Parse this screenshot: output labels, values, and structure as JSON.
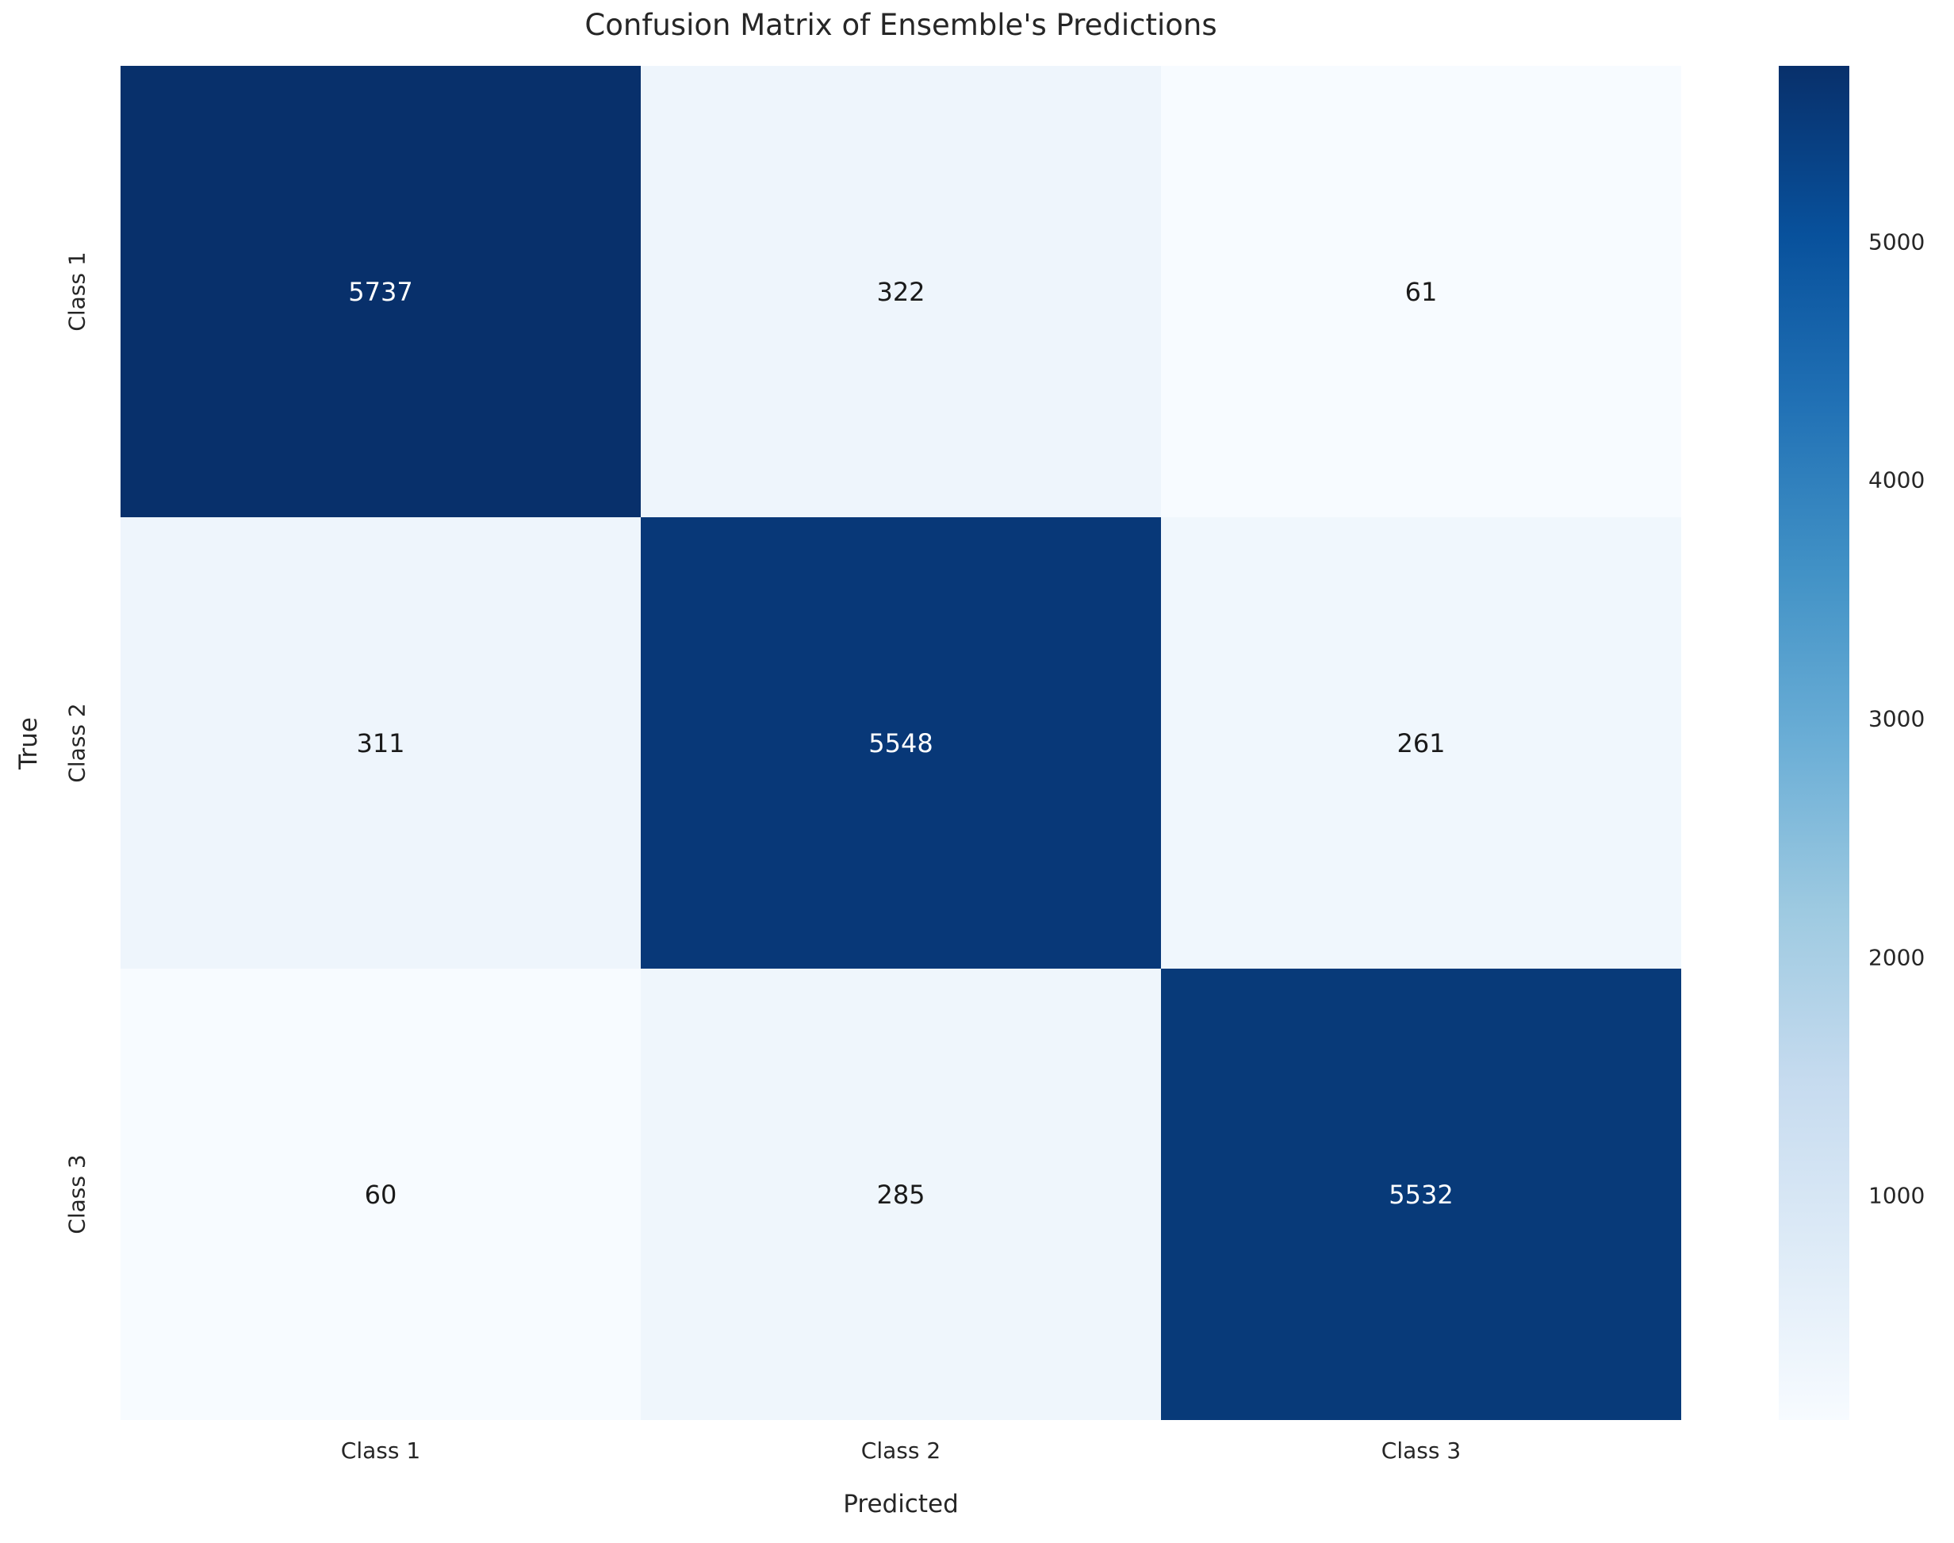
{
  "title": "Confusion Matrix of Ensemble's Predictions",
  "colors": {
    "background": "#ffffff",
    "text": "#262626",
    "annot_dark": "#1a1a1a",
    "annot_light": "#ffffff",
    "accent_dark_blue": "#08306b"
  },
  "chart_data": {
    "type": "heatmap",
    "title": "Confusion Matrix of Ensemble's Predictions",
    "xlabel": "Predicted",
    "ylabel": "True",
    "x_categories": [
      "Class 1",
      "Class 2",
      "Class 3"
    ],
    "y_categories": [
      "Class 1",
      "Class 2",
      "Class 3"
    ],
    "matrix": [
      [
        5737,
        322,
        61
      ],
      [
        311,
        5548,
        261
      ],
      [
        60,
        285,
        5532
      ]
    ],
    "colormap": "Blues",
    "vmin": 60,
    "vmax": 5737,
    "grid": false,
    "legend_position": "right-colorbar",
    "colorbar_ticks": [
      5000,
      4000,
      3000,
      2000,
      1000
    ],
    "cell_colors": [
      [
        "#08306b",
        "#eef5fc",
        "#f7fbff"
      ],
      [
        "#eef5fc",
        "#083878",
        "#f0f7fd"
      ],
      [
        "#f7fbff",
        "#eff6fc",
        "#083a79"
      ]
    ],
    "cell_text_colors": [
      [
        "#ffffff",
        "#1a1a1a",
        "#1a1a1a"
      ],
      [
        "#1a1a1a",
        "#ffffff",
        "#1a1a1a"
      ],
      [
        "#1a1a1a",
        "#1a1a1a",
        "#ffffff"
      ]
    ],
    "colorbar_gradient_stops": [
      {
        "pos": 0.0,
        "color": "#08306b"
      },
      {
        "pos": 12.5,
        "color": "#08519c"
      },
      {
        "pos": 25.0,
        "color": "#2171b5"
      },
      {
        "pos": 37.5,
        "color": "#4292c6"
      },
      {
        "pos": 50.0,
        "color": "#6baed6"
      },
      {
        "pos": 62.5,
        "color": "#9ecae1"
      },
      {
        "pos": 75.0,
        "color": "#c6dbef"
      },
      {
        "pos": 87.5,
        "color": "#deebf7"
      },
      {
        "pos": 100.0,
        "color": "#f7fbff"
      }
    ]
  }
}
